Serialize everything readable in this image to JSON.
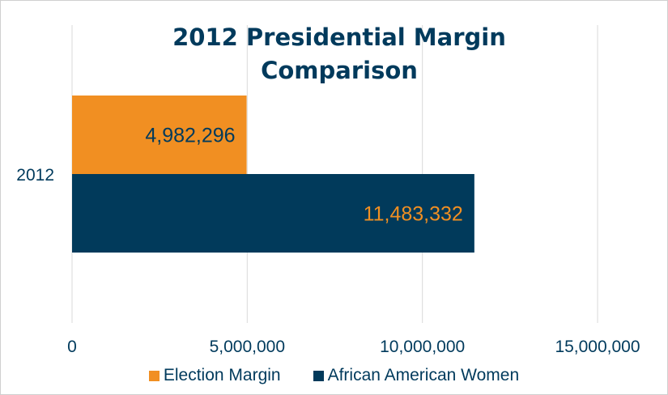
{
  "chart_data": {
    "type": "bar",
    "orientation": "horizontal",
    "title_lines": [
      "2012 Presidential Margin",
      "Comparison"
    ],
    "categories": [
      "2012"
    ],
    "series": [
      {
        "name": "Election Margin",
        "values": [
          4982296
        ],
        "color": "#f18f22",
        "label_color": "#003a5c"
      },
      {
        "name": "African American Women",
        "values": [
          11483332
        ],
        "color": "#013a5b",
        "label_color": "#f18f22"
      }
    ],
    "data_labels": [
      "4,982,296",
      "11,483,332"
    ],
    "xlim": [
      0,
      15000000
    ],
    "x_ticks": [
      0,
      5000000,
      10000000,
      15000000
    ],
    "x_tick_labels": [
      "0",
      "5,000,000",
      "10,000,000",
      "15,000,000"
    ],
    "grid": true,
    "legend_position": "bottom",
    "title_color": "#003a5c",
    "text_color": "#003a5c",
    "grid_color": "#d9d9d9"
  }
}
